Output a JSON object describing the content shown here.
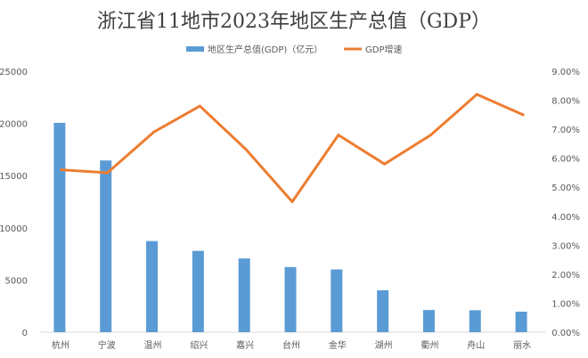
{
  "chart_data": {
    "type": "bar",
    "title": "浙江省11地市2023年地区生产总值（GDP）",
    "categories": [
      "杭州",
      "宁波",
      "温州",
      "绍兴",
      "嘉兴",
      "台州",
      "金华",
      "湖州",
      "衢州",
      "舟山",
      "丽水"
    ],
    "series": [
      {
        "name": "地区生产总值(GDP)（亿元）",
        "type": "bar",
        "axis": "left",
        "color": "#5b9bd5",
        "values": [
          20059,
          16452,
          8730,
          7791,
          7062,
          6241,
          6011,
          4016,
          2125,
          2101,
          1964
        ]
      },
      {
        "name": "GDP增速",
        "type": "line",
        "axis": "right",
        "color": "#ed7d31",
        "values": [
          5.6,
          5.5,
          6.9,
          7.8,
          6.3,
          4.5,
          6.8,
          5.8,
          6.8,
          8.2,
          7.5
        ]
      }
    ],
    "y_left": {
      "min": 0,
      "max": 25000,
      "ticks": [
        "0",
        "5000",
        "10000",
        "15000",
        "20000",
        "25000"
      ]
    },
    "y_right": {
      "min": 0,
      "max": 9,
      "ticks": [
        "0.00%",
        "1.00%",
        "2.00%",
        "3.00%",
        "4.00%",
        "5.00%",
        "6.00%",
        "7.00%",
        "8.00%",
        "9.00%"
      ]
    },
    "grid": false,
    "legend": "top-center"
  }
}
